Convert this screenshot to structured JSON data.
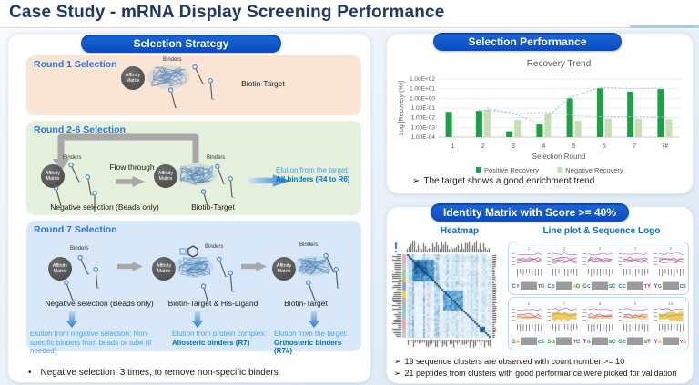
{
  "page": {
    "title": "Case Study - mRNA Display Screening Performance"
  },
  "glyphs": {
    "note_bullet": "➢",
    "footnote_bullet": "•"
  },
  "labels": {
    "affinity_matrix": "Affinity Matrix",
    "binders": "Binders"
  },
  "strategy": {
    "header": "Selection Strategy",
    "round1": {
      "label": "Round 1 Selection",
      "target": "Biotin-Target"
    },
    "round26": {
      "label": "Round 2-6 Selection",
      "flow_through": "Flow through",
      "negative_selection": "Negative selection (Beads only)",
      "target": "Biotin-Target",
      "elution_prefix": "Elution from the target: ",
      "elution_bold": "All binders (R4 to R6)"
    },
    "round7": {
      "label": "Round 7 Selection",
      "stage1_label": "Negative selection (Beads only)",
      "stage2_label": "Biotin-Target & His-Ligand",
      "stage3_label": "Biotin-Target",
      "elution1": "Elution from negative selection: Non-specific binders from beads or tube (if needed)",
      "elution2_prefix": "Elution from protein complex:",
      "elution2_bold": "Allosteric binders (R7)",
      "elution3_prefix": "Elution from the target:",
      "elution3_bold": "Orthosteric binders (R7#)"
    },
    "footnote": "Negative selection: 3 times, to remove non-specific binders"
  },
  "performance": {
    "header": "Selection Performance",
    "note": "The target shows a good enrichment trend",
    "chart_data": {
      "type": "bar",
      "title": "Recovery Trend",
      "xlabel": "Selection Round",
      "ylabel": "Log [Recovery (%)]",
      "categories": [
        "1",
        "2",
        "3",
        "4",
        "5",
        "6",
        "7",
        "7#"
      ],
      "y_ticks": [
        "1.00E+02",
        "1.00E+01",
        "1.00E+00",
        "1.00E-01",
        "1.00E-02",
        "1.00E-03",
        "1.00E-04"
      ],
      "ylim_log": [
        -4,
        2
      ],
      "grid": true,
      "legend_position": "bottom",
      "series": [
        {
          "name": "Positive Recovery",
          "color": "#1AA243",
          "values": [
            0.04,
            0.05,
            0.0004,
            0.002,
            1.0,
            11,
            5,
            9
          ]
        },
        {
          "name": "Negative Recovery",
          "color": "#C6E0B4",
          "values": [
            null,
            0.07,
            0.006,
            0.028,
            0.005,
            0.008,
            0.008,
            0.007
          ]
        }
      ],
      "trend_positive": [
        null,
        0.05,
        0.03,
        0.002,
        1.0,
        11,
        8.5,
        9.5
      ],
      "trend_negative": [
        null,
        0.07,
        0.02,
        0.03,
        0.012,
        0.01,
        0.01,
        0.009
      ],
      "trend_line_color": "#9DC3E6"
    }
  },
  "identity": {
    "header": "Identity Matrix with Score >= 40%",
    "heatmap_label": "Heatmap",
    "lineplot_label": "Line plot & Sequence Logo",
    "panel_numbers_top": [
      "1",
      "2",
      "3",
      "4",
      "5"
    ],
    "panel_numbers_bottom": [
      "6",
      "7",
      "8",
      "9",
      "10"
    ],
    "notes": [
      "19 sequence clusters are observed with count number >= 10",
      "21 peptides from clusters with good performance were picked for validation"
    ]
  },
  "colors": {
    "title": "#1F3864",
    "pill_blue": "#0C50C4",
    "round_label": "#2E74D8",
    "round1_bg": "#FAE5D5",
    "round26_bg": "#E4F0DB",
    "round7_bg": "#D9E8F8",
    "elution_text": "#4BA3E3",
    "elution_bold": "#0070C0",
    "positive_bar": "#1AA243",
    "negative_bar": "#C6E0B4",
    "trend_line": "#9DC3E6",
    "heatmap_blue": "#08306B"
  }
}
